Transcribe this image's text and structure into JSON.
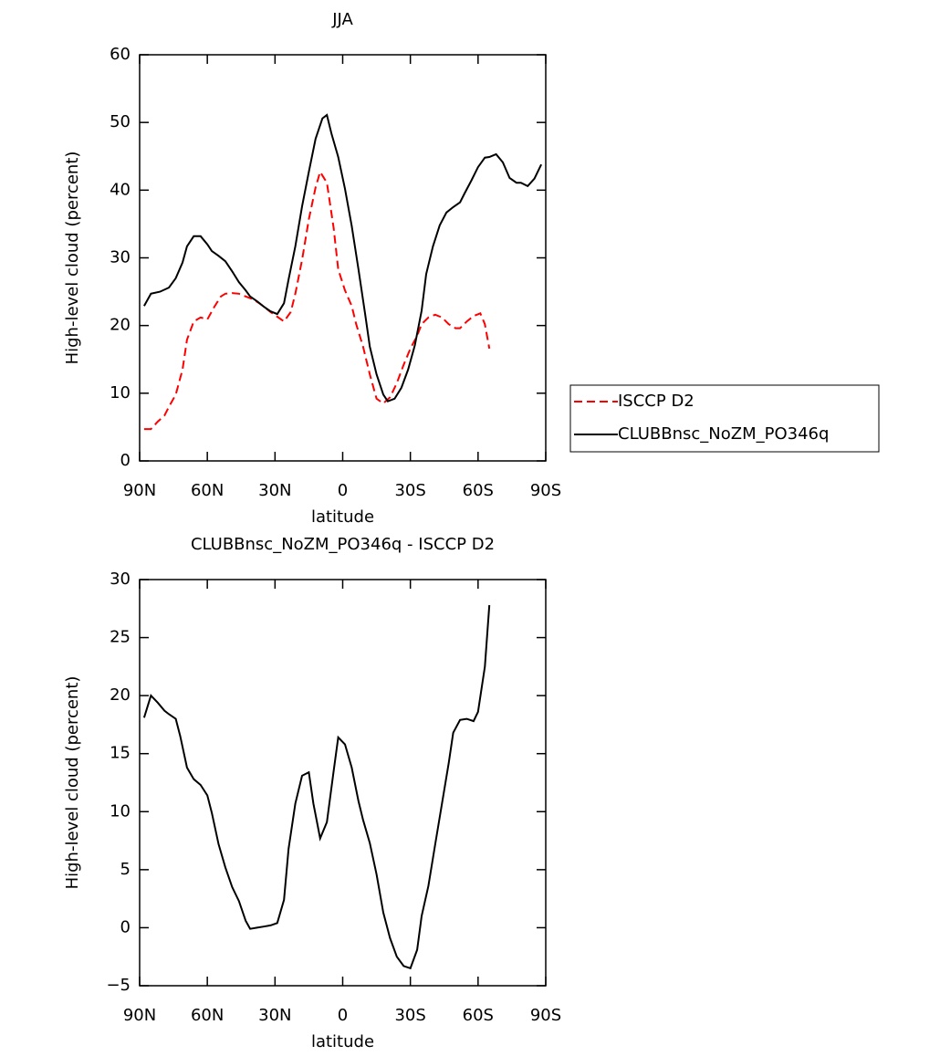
{
  "chart_data": [
    {
      "type": "line",
      "title": "JJA",
      "xlabel": "latitude",
      "ylabel": "High-level cloud (percent)",
      "xlim": [
        90,
        -90
      ],
      "xticks": [
        {
          "value": 90,
          "label": "90N"
        },
        {
          "value": 60,
          "label": "60N"
        },
        {
          "value": 30,
          "label": "30N"
        },
        0,
        {
          "value": -30,
          "label": "30S"
        },
        {
          "value": -60,
          "label": "60S"
        },
        {
          "value": -90,
          "label": "90S"
        }
      ],
      "ylim": [
        0,
        60
      ],
      "yticks": [
        0,
        10,
        20,
        30,
        40,
        50,
        60
      ],
      "legend": "right",
      "series": [
        {
          "name": "ISCCP D2",
          "color": "#ff0000",
          "dash": true,
          "x": [
            88,
            85,
            82,
            79,
            77,
            74,
            71,
            69,
            66,
            63,
            60,
            57,
            54,
            52,
            49,
            46,
            43,
            40,
            37,
            35,
            32,
            29,
            26,
            23,
            21,
            18,
            15,
            12,
            10,
            7,
            4,
            2,
            -1,
            -4,
            -6,
            -9,
            -12,
            -15,
            -18,
            -21,
            -24,
            -27,
            -30,
            -33,
            -35,
            -38,
            -41,
            -44,
            -47,
            -50,
            -52,
            -55,
            -58,
            -61,
            -63,
            -65
          ],
          "values": [
            4.7,
            4.7,
            5.8,
            6.7,
            8,
            9.8,
            13.5,
            17.9,
            20.6,
            21.2,
            20.9,
            22.7,
            24.3,
            24.7,
            24.8,
            24.7,
            24.3,
            23.9,
            23.3,
            22.8,
            22,
            21.3,
            20.6,
            22,
            24.7,
            29.7,
            35.7,
            40.4,
            42.7,
            41.1,
            34.4,
            28.3,
            25.2,
            22.9,
            20.2,
            16.9,
            12.8,
            9.2,
            8.5,
            9.4,
            11.5,
            14.2,
            16.6,
            18.5,
            20.2,
            21.2,
            21.6,
            21.2,
            20.2,
            19.6,
            19.6,
            20.6,
            21.4,
            21.8,
            20.2,
            16.6
          ]
        },
        {
          "name": "CLUBBnsc_NoZM_PO346q",
          "color": "#000000",
          "dash": false,
          "x": [
            88,
            85,
            81,
            77,
            74,
            71,
            69,
            66,
            63,
            60,
            58,
            55,
            52,
            49,
            46,
            43,
            41,
            38,
            35,
            32,
            29,
            26,
            24,
            21,
            18,
            15,
            12,
            9,
            7,
            5,
            2,
            -1,
            -4,
            -7,
            -10,
            -12,
            -15,
            -18,
            -20,
            -23,
            -26,
            -29,
            -32,
            -35,
            -37,
            -40,
            -43,
            -46,
            -49,
            -52,
            -54,
            -57,
            -60,
            -63,
            -65,
            -68,
            -71,
            -74,
            -77,
            -79,
            -82,
            -85,
            -88
          ],
          "values": [
            22.9,
            24.7,
            25,
            25.6,
            27,
            29.3,
            31.7,
            33.2,
            33.2,
            32,
            31,
            30.3,
            29.5,
            28,
            26.4,
            25.2,
            24.3,
            23.6,
            22.8,
            22.1,
            21.7,
            23.3,
            26.8,
            31.7,
            37.6,
            42.7,
            47.6,
            50.6,
            51.1,
            48.4,
            44.9,
            40.2,
            34.7,
            28.3,
            21.6,
            16.9,
            12.8,
            9.8,
            8.8,
            9.2,
            10.8,
            13.5,
            17.1,
            22.2,
            27.6,
            31.7,
            34.8,
            36.7,
            37.5,
            38.2,
            39.5,
            41.4,
            43.4,
            44.8,
            44.9,
            45.3,
            44.1,
            41.8,
            41.1,
            41.1,
            40.6,
            41.7,
            43.8
          ]
        }
      ]
    },
    {
      "type": "line",
      "title": "CLUBBnsc_NoZM_PO346q - ISCCP D2",
      "xlabel": "latitude",
      "ylabel": "High-level cloud (percent)",
      "xlim": [
        90,
        -90
      ],
      "xticks": [
        {
          "value": 90,
          "label": "90N"
        },
        {
          "value": 60,
          "label": "60N"
        },
        {
          "value": 30,
          "label": "30N"
        },
        0,
        {
          "value": -30,
          "label": "30S"
        },
        {
          "value": -60,
          "label": "60S"
        },
        {
          "value": -90,
          "label": "90S"
        }
      ],
      "ylim": [
        -5,
        30
      ],
      "yticks": [
        {
          "value": -5,
          "label": "−5"
        },
        0,
        5,
        10,
        15,
        20,
        25,
        30
      ],
      "series": [
        {
          "color": "#000000",
          "dash": false,
          "x": [
            88,
            85,
            82,
            79,
            77,
            74,
            72,
            69,
            66,
            63,
            60,
            58,
            55,
            52,
            49,
            46,
            43,
            41,
            38,
            35,
            32,
            29,
            26,
            24,
            21,
            18,
            15,
            13,
            10,
            7,
            4,
            2,
            -1,
            -4,
            -7,
            -9,
            -12,
            -15,
            -18,
            -21,
            -24,
            -27,
            -30,
            -33,
            -35,
            -38,
            -41,
            -44,
            -47,
            -49,
            -52,
            -55,
            -58,
            -60,
            -63,
            -65
          ],
          "values": [
            18.1,
            20,
            19.4,
            18.7,
            18.4,
            18,
            16.5,
            13.8,
            12.8,
            12.3,
            11.4,
            9.9,
            7.2,
            5.2,
            3.5,
            2.3,
            0.6,
            -0.1,
            0,
            0.1,
            0.2,
            0.4,
            2.4,
            6.8,
            10.7,
            13.1,
            13.4,
            10.7,
            7.7,
            9.1,
            13.5,
            16.4,
            15.8,
            13.8,
            10.9,
            9.3,
            7.3,
            4.6,
            1.3,
            -0.9,
            -2.5,
            -3.3,
            -3.5,
            -1.9,
            1,
            3.6,
            7.2,
            10.7,
            14.2,
            16.8,
            17.9,
            18,
            17.8,
            18.6,
            22.5,
            27.8
          ]
        }
      ]
    }
  ]
}
